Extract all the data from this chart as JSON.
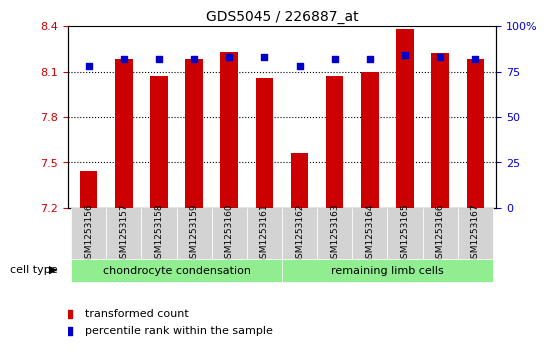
{
  "title": "GDS5045 / 226887_at",
  "samples": [
    "GSM1253156",
    "GSM1253157",
    "GSM1253158",
    "GSM1253159",
    "GSM1253160",
    "GSM1253161",
    "GSM1253162",
    "GSM1253163",
    "GSM1253164",
    "GSM1253165",
    "GSM1253166",
    "GSM1253167"
  ],
  "red_values": [
    7.44,
    8.18,
    8.07,
    8.18,
    8.23,
    8.06,
    7.56,
    8.07,
    8.1,
    8.38,
    8.22,
    8.18
  ],
  "blue_values": [
    78,
    82,
    82,
    82,
    83,
    83,
    78,
    82,
    82,
    84,
    83,
    82
  ],
  "ylim_left": [
    7.2,
    8.4
  ],
  "ylim_right": [
    0,
    100
  ],
  "yticks_left": [
    7.2,
    7.5,
    7.8,
    8.1,
    8.4
  ],
  "yticks_right": [
    0,
    25,
    50,
    75,
    100
  ],
  "ytick_labels_right": [
    "0",
    "25",
    "50",
    "75",
    "100%"
  ],
  "grid_values": [
    7.5,
    7.8,
    8.1
  ],
  "bar_color": "#cc0000",
  "dot_color": "#0000cc",
  "group1_label": "chondrocyte condensation",
  "group2_label": "remaining limb cells",
  "cell_type_label": "cell type",
  "legend1": "transformed count",
  "legend2": "percentile rank within the sample",
  "group_color": "#90ee90",
  "sample_bg_color": "#d3d3d3",
  "n_group1": 6,
  "n_group2": 6
}
